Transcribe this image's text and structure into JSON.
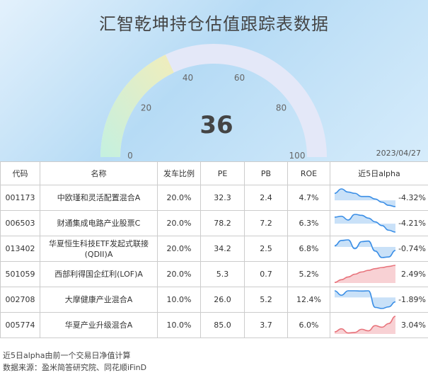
{
  "title": "汇智乾坤持仓估值跟踪表数据",
  "date": "2023/04/27",
  "gauge": {
    "value": 36,
    "min": 0,
    "max": 100,
    "tick_labels": [
      "0",
      "20",
      "40",
      "60",
      "80",
      "100"
    ],
    "colors": {
      "filled_start": "#c4f0e0",
      "filled_end": "#f1edbb",
      "track": "#e4e8f8"
    }
  },
  "table": {
    "headers": [
      "代码",
      "名称",
      "发车比例",
      "PE",
      "PB",
      "ROE",
      "近5日alpha"
    ],
    "rows": [
      {
        "code": "001173",
        "name": "中欧瑾和灵活配置混合A",
        "ratio": "20.0%",
        "pe": "32.3",
        "pb": "2.4",
        "roe": "4.7%",
        "alpha": "-4.32%",
        "trend": [
          0.55,
          0.9,
          0.65,
          0.55,
          0.3,
          0.3,
          0.1,
          -0.15,
          -0.4,
          -0.5
        ],
        "is_negative": true
      },
      {
        "code": "006503",
        "name": "财通集成电路产业股票C",
        "ratio": "20.0%",
        "pe": "78.2",
        "pb": "7.2",
        "roe": "6.3%",
        "alpha": "-4.21%",
        "trend": [
          0.35,
          0.4,
          0.2,
          0.5,
          0.45,
          0.3,
          0.1,
          -0.1,
          -0.35,
          -0.45
        ],
        "is_negative": true
      },
      {
        "code": "013402",
        "name": "华夏恒生科技ETF发起式联接(QDII)A",
        "name_line1": "华夏恒生科技ETF发起式联接",
        "name_line2": "(QDII)A",
        "ratio": "20.0%",
        "pe": "34.2",
        "pb": "2.5",
        "roe": "6.8%",
        "alpha": "-0.74%",
        "trend": [
          0.1,
          0.55,
          0.6,
          -0.15,
          0.45,
          0.5,
          -0.35,
          -0.9,
          -0.85,
          -0.3
        ],
        "is_negative": true
      },
      {
        "code": "501059",
        "name": "西部利得国企红利(LOF)A",
        "ratio": "20.0%",
        "pe": "5.3",
        "pb": "0.7",
        "roe": "5.2%",
        "alpha": "2.49%",
        "trend": [
          0.05,
          0.3,
          0.55,
          0.8,
          1.0,
          1.15,
          1.3,
          1.4,
          1.5,
          1.6
        ],
        "is_negative": false
      },
      {
        "code": "002708",
        "name": "大摩健康产业混合A",
        "ratio": "10.0%",
        "pe": "26.0",
        "pb": "5.2",
        "roe": "12.4%",
        "alpha": "-1.89%",
        "trend": [
          0.6,
          0.2,
          0.6,
          0.6,
          0.58,
          0.6,
          -0.9,
          -1.0,
          -0.85,
          -0.4
        ],
        "is_negative": true
      },
      {
        "code": "005774",
        "name": "华夏产业升级混合A",
        "ratio": "10.0%",
        "pe": "85.0",
        "pb": "3.7",
        "roe": "6.0%",
        "alpha": "3.04%",
        "trend": [
          0.2,
          0.5,
          0.1,
          0.15,
          0.45,
          0.3,
          0.8,
          0.65,
          1.0,
          1.7
        ],
        "is_negative": false
      }
    ]
  },
  "footer": {
    "note": "近5日alpha由前一个交易日净值计算",
    "source": "数据来源：盈米简答研究院、同花顺iFinD"
  },
  "colors": {
    "negative_line": "#3a8ee6",
    "negative_fill": "#bfdcf7",
    "positive_line": "#e8747c",
    "positive_fill": "#f7c9cc"
  },
  "chart_data": [
    {
      "type": "gauge",
      "value": 36,
      "range": [
        0,
        100
      ],
      "ticks": [
        0,
        20,
        40,
        60,
        80,
        100
      ]
    },
    {
      "type": "table",
      "columns": [
        "代码",
        "名称",
        "发车比例",
        "PE",
        "PB",
        "ROE",
        "近5日alpha"
      ],
      "rows": [
        [
          "001173",
          "中欧瑾和灵活配置混合A",
          "20.0%",
          "32.3",
          "2.4",
          "4.7%",
          "-4.32%"
        ],
        [
          "006503",
          "财通集成电路产业股票C",
          "20.0%",
          "78.2",
          "7.2",
          "6.3%",
          "-4.21%"
        ],
        [
          "013402",
          "华夏恒生科技ETF发起式联接(QDII)A",
          "20.0%",
          "34.2",
          "2.5",
          "6.8%",
          "-0.74%"
        ],
        [
          "501059",
          "西部利得国企红利(LOF)A",
          "20.0%",
          "5.3",
          "0.7",
          "5.2%",
          "2.49%"
        ],
        [
          "002708",
          "大摩健康产业混合A",
          "10.0%",
          "26.0",
          "5.2",
          "12.4%",
          "-1.89%"
        ],
        [
          "005774",
          "华夏产业升级混合A",
          "10.0%",
          "85.0",
          "3.7",
          "6.0%",
          "3.04%"
        ]
      ]
    }
  ]
}
